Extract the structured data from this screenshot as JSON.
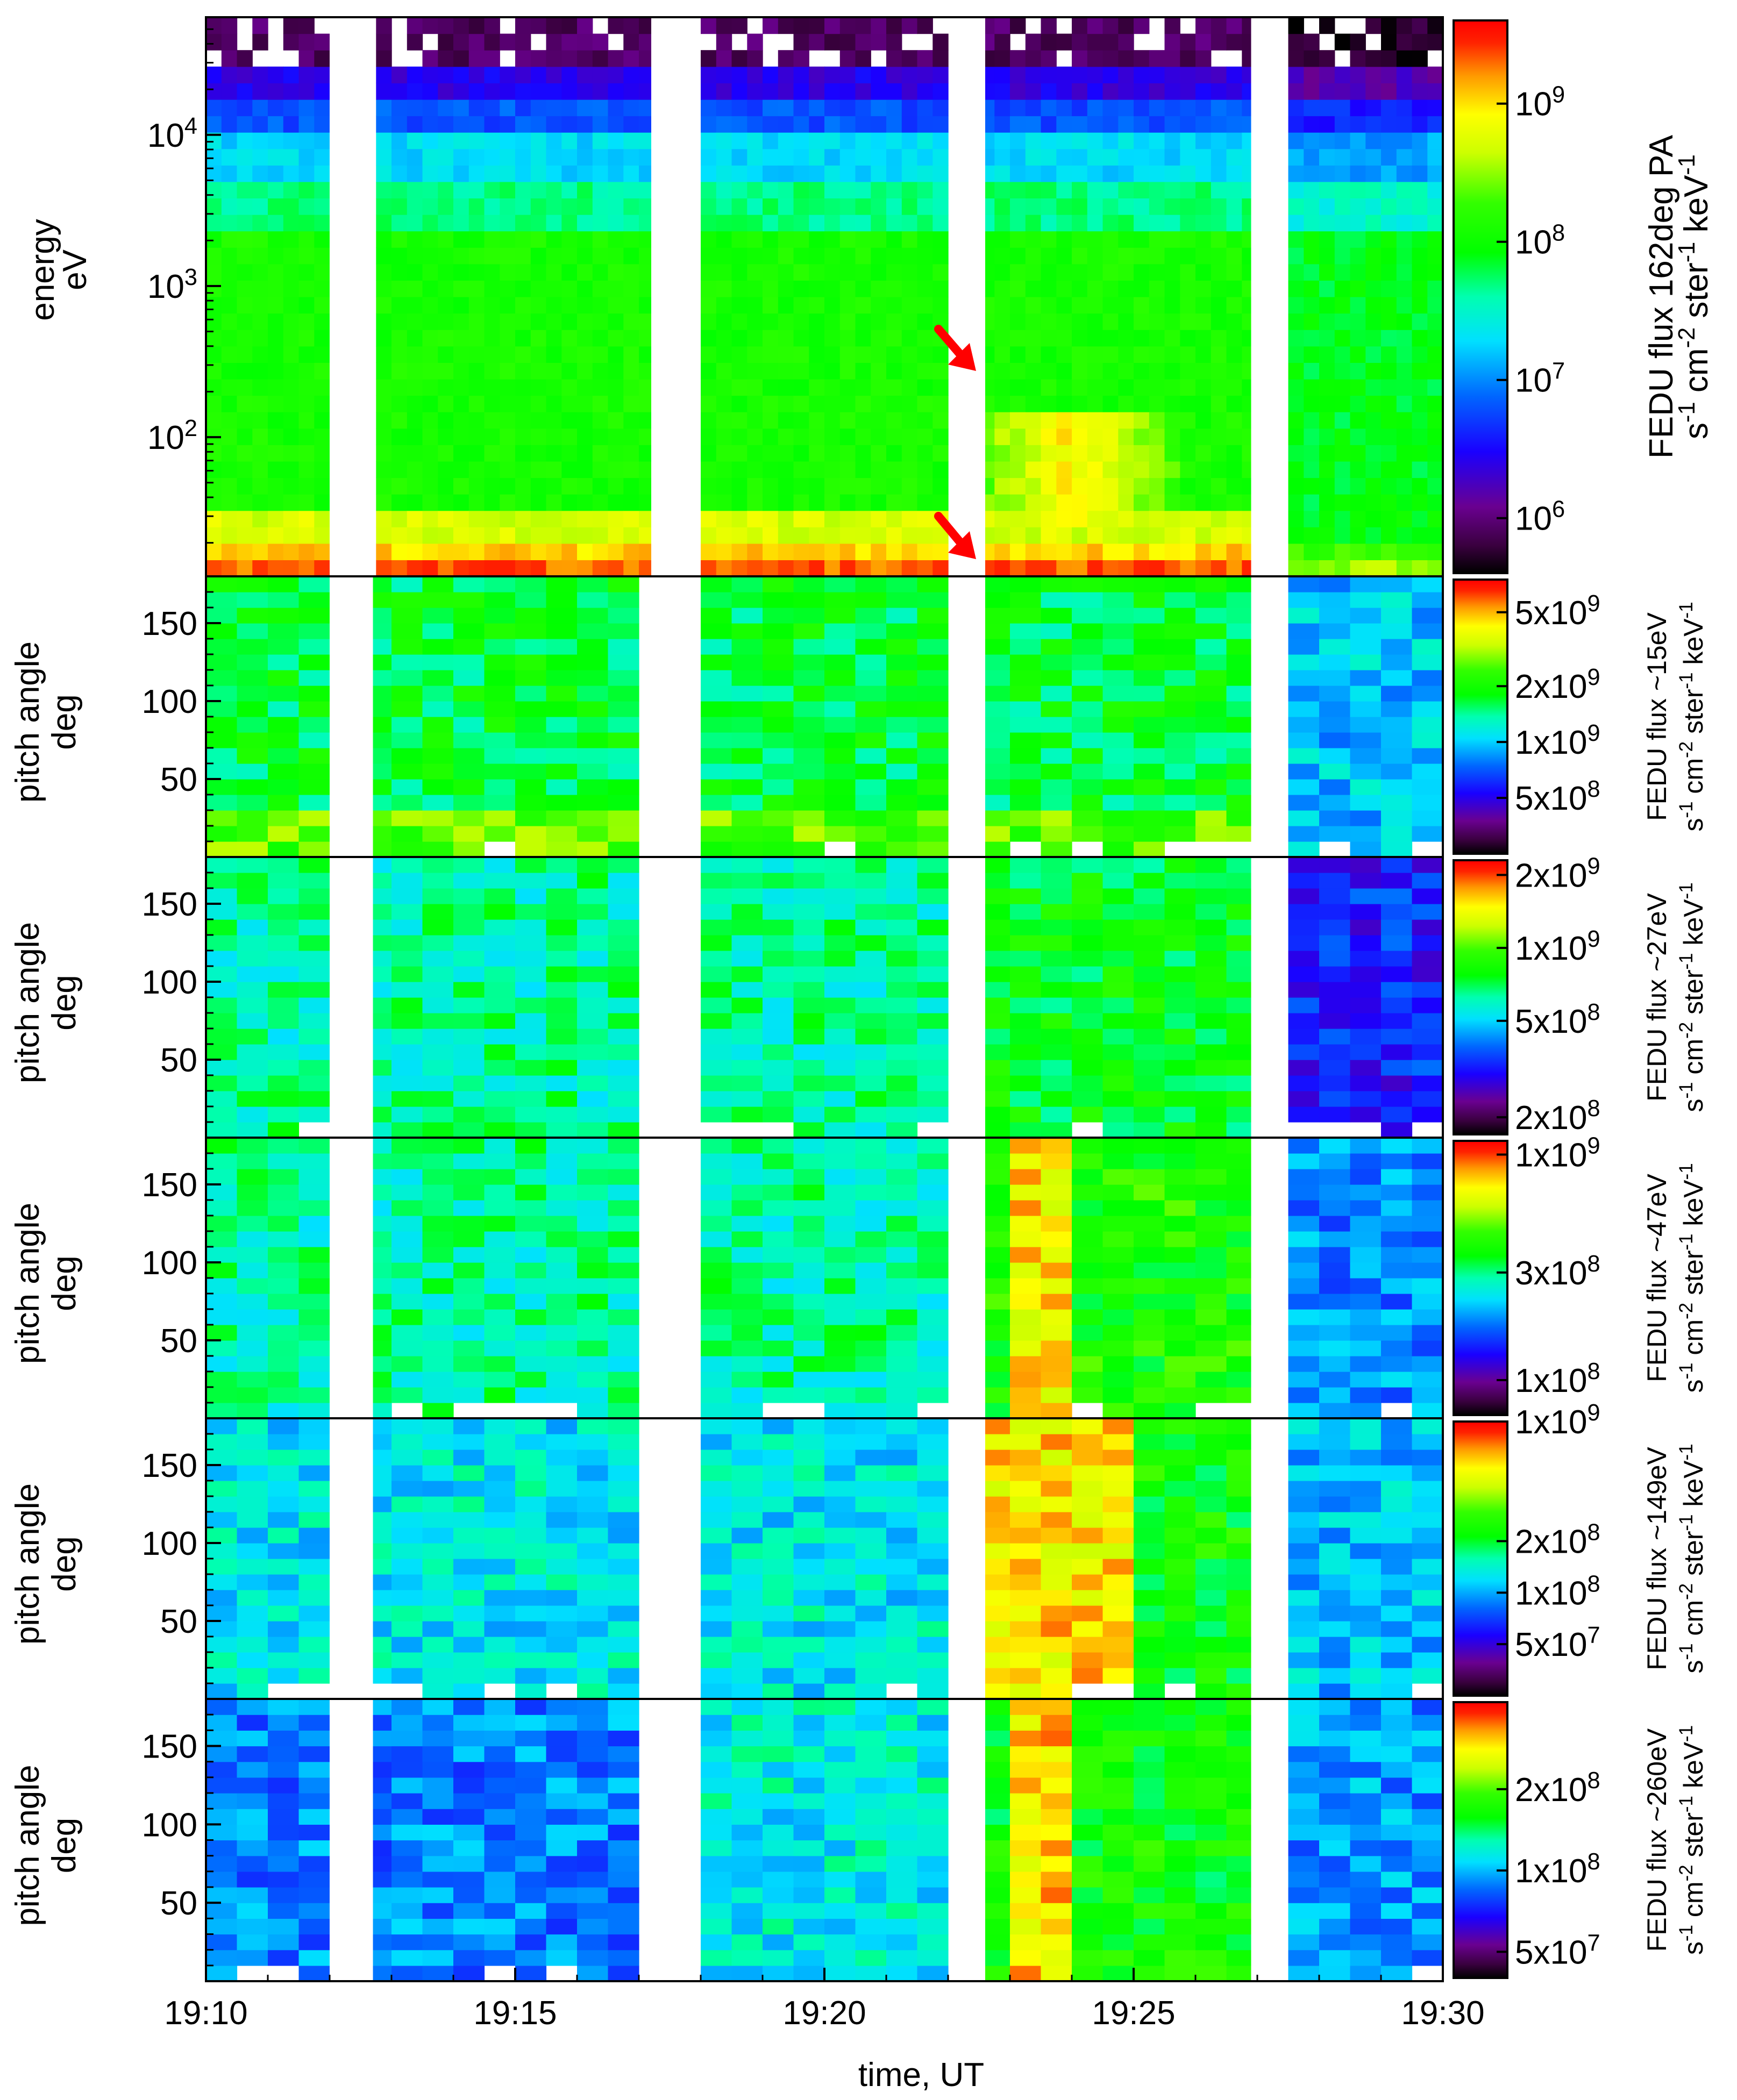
{
  "chart_data": {
    "type": "heatmap",
    "x_axis": {
      "label": "time, UT",
      "range": [
        "19:10",
        "19:30"
      ],
      "ticks": [
        "19:10",
        "19:15",
        "19:20",
        "19:25",
        "19:30"
      ]
    },
    "data_gaps_UT": [
      [
        "19:12.0",
        "19:12.7"
      ],
      [
        "19:17.2",
        "19:17.9"
      ],
      [
        "19:22.1",
        "19:22.6"
      ],
      [
        "19:26.9",
        "19:27.4"
      ]
    ],
    "panels": [
      {
        "id": "energy",
        "ylabel": "energy",
        "yunits": "eV",
        "yscale": "log",
        "ylim": [
          12,
          60000
        ],
        "yticks": [
          {
            "v": 10000,
            "b": "10",
            "e": "4"
          },
          {
            "v": 1000,
            "b": "10",
            "e": "3"
          },
          {
            "v": 100,
            "b": "10",
            "e": "2"
          }
        ],
        "colorbar": {
          "title": "FEDU flux 162deg PA",
          "units": "s-1cm-2ster-1keV-1",
          "range": [
            400000,
            4000000000
          ],
          "ticks": [
            {
              "v": 1000000000,
              "b": "10",
              "e": "9"
            },
            {
              "v": 100000000,
              "b": "10",
              "e": "8"
            },
            {
              "v": 10000000,
              "b": "10",
              "e": "7"
            },
            {
              "v": 1000000,
              "b": "10",
              "e": "6"
            }
          ]
        },
        "annotations": [
          "red arrow pointing to start of enhanced ~100 eV flux near 19:22.5",
          "red arrow pointing to low-energy band near 19:22.5"
        ]
      },
      {
        "id": "pa15",
        "ylabel": "pitch angle",
        "yunits": "deg",
        "ylim": [
          0,
          180
        ],
        "yticks": [
          {
            "v": 150,
            "t": "150"
          },
          {
            "v": 100,
            "t": "100"
          },
          {
            "v": 50,
            "t": "50"
          }
        ],
        "colorbar": {
          "title": "FEDU flux ~15eV",
          "units": "s-1cm-2ster-1keV-1",
          "range": [
            250000000,
            7500000000
          ],
          "ticks": [
            {
              "v": 5000000000,
              "t": "5x10",
              "e": "9"
            },
            {
              "v": 2000000000,
              "t": "2x10",
              "e": "9"
            },
            {
              "v": 1000000000,
              "t": "1x10",
              "e": "9"
            },
            {
              "v": 500000000,
              "t": "5x10",
              "e": "8"
            }
          ]
        }
      },
      {
        "id": "pa27",
        "ylabel": "pitch angle",
        "yunits": "deg",
        "ylim": [
          0,
          180
        ],
        "yticks": [
          {
            "v": 150,
            "t": "150"
          },
          {
            "v": 100,
            "t": "100"
          },
          {
            "v": 50,
            "t": "50"
          }
        ],
        "colorbar": {
          "title": "FEDU flux ~27eV",
          "units": "s-1cm-2ster-1keV-1",
          "range": [
            170000000,
            2300000000
          ],
          "ticks": [
            {
              "v": 2000000000,
              "t": "2x10",
              "e": "9"
            },
            {
              "v": 1000000000,
              "t": "1x10",
              "e": "9"
            },
            {
              "v": 500000000,
              "t": "5x10",
              "e": "8"
            },
            {
              "v": 200000000,
              "t": "2x10",
              "e": "8"
            }
          ]
        }
      },
      {
        "id": "pa47",
        "ylabel": "pitch angle",
        "yunits": "deg",
        "ylim": [
          0,
          180
        ],
        "yticks": [
          {
            "v": 150,
            "t": "150"
          },
          {
            "v": 100,
            "t": "100"
          },
          {
            "v": 50,
            "t": "50"
          }
        ],
        "colorbar": {
          "title": "FEDU flux ~47eV",
          "units": "s-1cm-2ster-1keV-1",
          "range": [
            70000000,
            1150000000
          ],
          "ticks": [
            {
              "v": 1000000000,
              "t": "1x10",
              "e": "9"
            },
            {
              "v": 300000000,
              "t": "3x10",
              "e": "8"
            },
            {
              "v": 100000000,
              "t": "1x10",
              "e": "8"
            }
          ]
        }
      },
      {
        "id": "pa149",
        "ylabel": "pitch angle",
        "yunits": "deg",
        "ylim": [
          0,
          180
        ],
        "yticks": [
          {
            "v": 150,
            "t": "150"
          },
          {
            "v": 100,
            "t": "100"
          },
          {
            "v": 50,
            "t": "50"
          }
        ],
        "colorbar": {
          "title": "FEDU flux ~149eV",
          "units": "s-1cm-2ster-1keV-1",
          "range": [
            25000000,
            1000000000
          ],
          "ticks": [
            {
              "v": 1000000000,
              "t": "1x10",
              "e": "9"
            },
            {
              "v": 200000000,
              "t": "2x10",
              "e": "8"
            },
            {
              "v": 100000000,
              "t": "1x10",
              "e": "8"
            },
            {
              "v": 50000000,
              "t": "5x10",
              "e": "7"
            }
          ]
        }
      },
      {
        "id": "pa260",
        "ylabel": "pitch angle",
        "yunits": "deg",
        "ylim": [
          0,
          180
        ],
        "yticks": [
          {
            "v": 150,
            "t": "150"
          },
          {
            "v": 100,
            "t": "100"
          },
          {
            "v": 50,
            "t": "50"
          }
        ],
        "colorbar": {
          "title": "FEDU flux ~260eV",
          "units": "s-1cm-2ster-1keV-1",
          "range": [
            40000000,
            420000000
          ],
          "ticks": [
            {
              "v": 200000000,
              "t": "2x10",
              "e": "8"
            },
            {
              "v": 100000000,
              "t": "1x10",
              "e": "8"
            },
            {
              "v": 50000000,
              "t": "5x10",
              "e": "7"
            }
          ]
        }
      }
    ]
  }
}
